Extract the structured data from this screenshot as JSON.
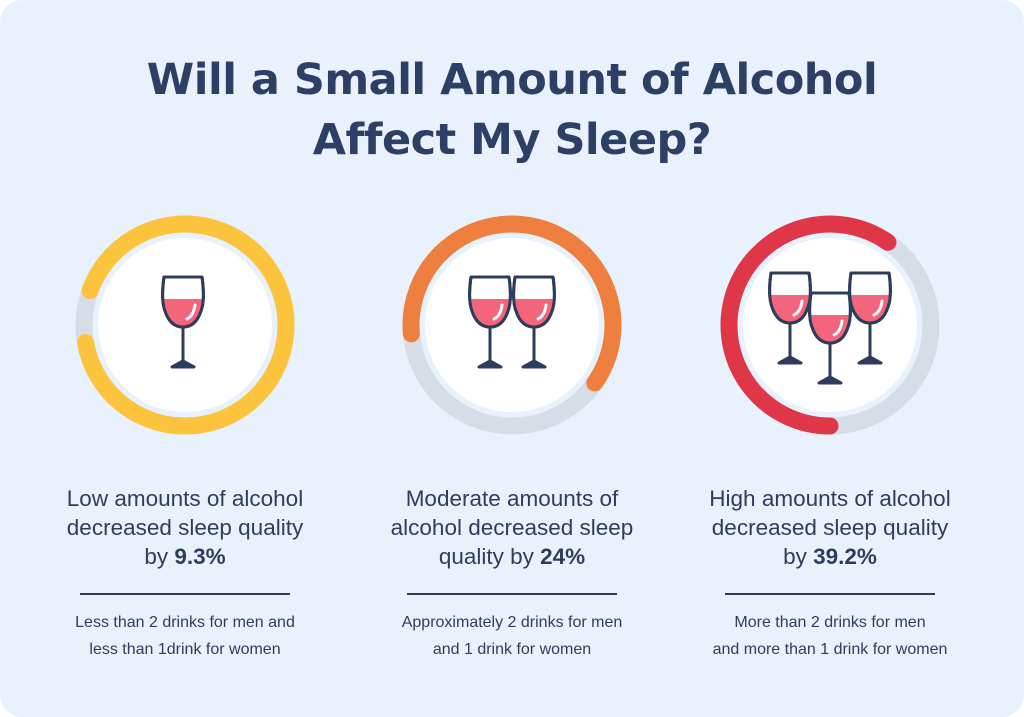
{
  "title": {
    "line1": "Will a Small Amount of Alcohol",
    "line2": "Affect My Sleep?"
  },
  "colors": {
    "background": "#e9f2fc",
    "text": "#2d3e5c",
    "track": "#d7dde6",
    "low": "#fcc43c",
    "moderate": "#ee7f3e",
    "high": "#df3648",
    "wine": "#f2657a",
    "glass_outline": "#2e3c5c"
  },
  "chart_data": {
    "type": "donut",
    "title": "Will a Small Amount of Alcohol Affect My Sleep?",
    "categories": [
      "Low",
      "Moderate",
      "High"
    ],
    "values": [
      9.3,
      24,
      39.2
    ],
    "unit": "%",
    "items": [
      {
        "key": "low",
        "glasses": 1,
        "headline_lines": [
          "Low amounts of alcohol",
          "decreased sleep quality"
        ],
        "headline_prefix": "by ",
        "value_label": "9.3%",
        "note_lines": [
          "Less than 2 drinks for men and",
          "less than 1drink for women"
        ]
      },
      {
        "key": "moderate",
        "glasses": 2,
        "headline_lines": [
          "Moderate amounts of",
          "alcohol decreased sleep"
        ],
        "headline_prefix": "quality by ",
        "value_label": "24%",
        "note_lines": [
          "Approximately 2 drinks for men",
          "and 1 drink for women"
        ]
      },
      {
        "key": "high",
        "glasses": 3,
        "headline_lines": [
          "High amounts of alcohol",
          "decreased sleep quality"
        ],
        "headline_prefix": "by ",
        "value_label": "39.2%",
        "note_lines": [
          "More than 2 drinks for men",
          "and more than 1 drink for women"
        ]
      }
    ]
  }
}
